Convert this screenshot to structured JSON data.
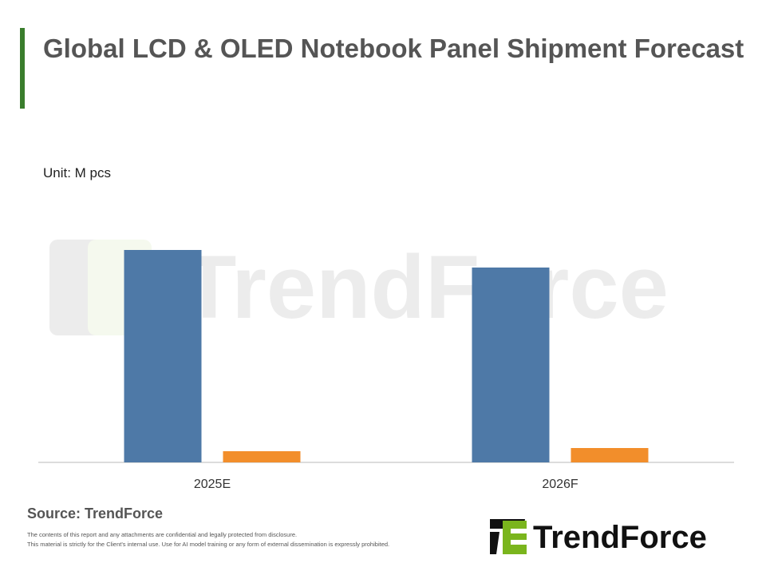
{
  "title": "Global LCD & OLED Notebook Panel Shipment Forecast",
  "unit": "Unit: M pcs",
  "source": "Source: TrendForce",
  "disclaimer": [
    "The contents of this report and any attachments are confidential and legally protected from disclosure.",
    "This material is strictly for the Client's internal use. Use for AI model training or any form of external dissemination is expressly prohibited."
  ],
  "logo_text": "TrendForce",
  "watermark_text": "TrendForce",
  "colors": {
    "accent": "#3a7d2c",
    "series_1": "#4e79a7",
    "series_2": "#f28e2b",
    "logo_green": "#7ab51d"
  },
  "chart_data": {
    "type": "bar",
    "categories": [
      "2025E",
      "2026F"
    ],
    "series": [
      {
        "values": [
          266,
          244
        ],
        "color": "#4e79a7"
      },
      {
        "values": [
          14,
          18
        ],
        "color": "#f28e2b"
      }
    ],
    "title": "Global LCD & OLED Notebook Panel Shipment Forecast",
    "ylabel": "Unit: M pcs",
    "ylim": [
      0,
      280
    ],
    "grid": false,
    "legend": "none"
  }
}
